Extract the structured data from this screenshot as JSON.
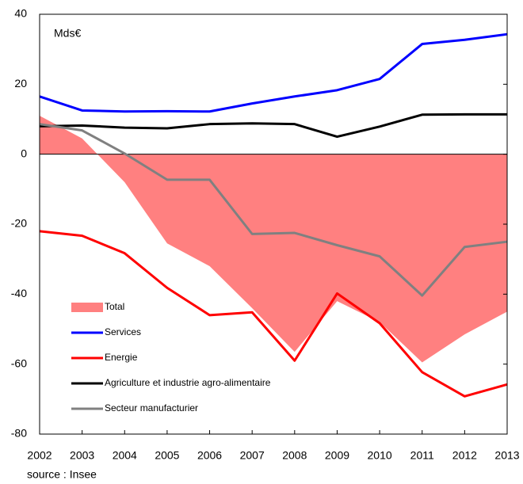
{
  "chart_data": {
    "type": "line",
    "annotation": "Mds€",
    "source": "source : Insee",
    "x": [
      2002,
      2003,
      2004,
      2005,
      2006,
      2007,
      2008,
      2009,
      2010,
      2011,
      2012,
      2013
    ],
    "xlim": [
      2002,
      2013
    ],
    "xticks": [
      2002,
      2003,
      2004,
      2005,
      2006,
      2007,
      2008,
      2009,
      2010,
      2011,
      2012,
      2013
    ],
    "ylim": [
      -80,
      40
    ],
    "yticks": [
      -80,
      -60,
      -40,
      -20,
      0,
      20,
      40
    ],
    "legend": "lower-left",
    "series": [
      {
        "name": "Total",
        "type": "area",
        "color": "#ff8080",
        "values": [
          11,
          4.5,
          -8,
          -25.5,
          -32,
          -44,
          -56.5,
          -42,
          -48,
          -59.5,
          -51.5,
          -45
        ]
      },
      {
        "name": "Services",
        "type": "line",
        "color": "#0000ff",
        "values": [
          16.5,
          12.5,
          12.2,
          12.3,
          12.2,
          14.5,
          16.5,
          18.3,
          21.5,
          31.5,
          32.7,
          34.3
        ]
      },
      {
        "name": "Energie",
        "type": "line",
        "color": "#ff0000",
        "values": [
          -22,
          -23.3,
          -28.3,
          -38.2,
          -46,
          -45.2,
          -59,
          -39.8,
          -48.3,
          -62.3,
          -69.2,
          -65.8
        ]
      },
      {
        "name": "Agriculture et industrie agro-alimentaire",
        "type": "line",
        "color": "#000000",
        "values": [
          8,
          8.2,
          7.6,
          7.4,
          8.6,
          8.8,
          8.6,
          5,
          7.9,
          11.3,
          11.4,
          11.4
        ]
      },
      {
        "name": "Secteur manufacturier",
        "type": "line",
        "color": "#808080",
        "values": [
          8.6,
          6.8,
          0.2,
          -7.3,
          -7.3,
          -22.8,
          -22.5,
          -26,
          -29.2,
          -40.4,
          -26.5,
          -25
        ]
      }
    ]
  }
}
